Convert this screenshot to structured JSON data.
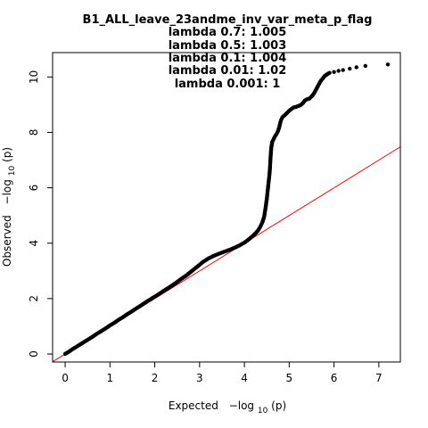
{
  "chart_data": {
    "type": "scatter",
    "title": "B1_ALL_leave_23andme_inv_var_meta_p_flag",
    "subtitles": [
      "lambda 0.7: 1.005",
      "lambda 0.5: 1.003",
      "lambda 0.1: 1.004",
      "lambda 0.01: 1.02",
      "lambda 0.001: 1"
    ],
    "xlabel_text": "Expected",
    "xlabel_math": "−log",
    "xlabel_sub": "10",
    "xlabel_paren": "(p)",
    "ylabel_text": "Observed",
    "ylabel_math": "−log",
    "ylabel_sub": "10",
    "ylabel_paren": "(p)",
    "xlim": [
      -0.28,
      7.48
    ],
    "ylim": [
      -0.29,
      10.88
    ],
    "x_ticks": [
      0,
      1,
      2,
      3,
      4,
      5,
      6,
      7
    ],
    "y_ticks": [
      0,
      2,
      4,
      6,
      8,
      10
    ],
    "x_tick_labels": [
      "0",
      "1",
      "2",
      "3",
      "4",
      "5",
      "6",
      "7"
    ],
    "y_tick_labels": [
      "0",
      "2",
      "4",
      "6",
      "8",
      "10"
    ],
    "reference_line": {
      "slope": 1,
      "intercept": 0,
      "color": "#ff0000"
    },
    "point_color": "#000000",
    "points": [
      [
        0.0,
        0.0
      ],
      [
        0.05,
        0.05
      ],
      [
        0.1,
        0.1
      ],
      [
        0.15,
        0.16
      ],
      [
        0.2,
        0.21
      ],
      [
        0.3,
        0.31
      ],
      [
        0.4,
        0.41
      ],
      [
        0.5,
        0.51
      ],
      [
        0.6,
        0.61
      ],
      [
        0.7,
        0.72
      ],
      [
        0.8,
        0.82
      ],
      [
        0.9,
        0.92
      ],
      [
        1.0,
        1.03
      ],
      [
        1.1,
        1.13
      ],
      [
        1.2,
        1.24
      ],
      [
        1.3,
        1.34
      ],
      [
        1.4,
        1.45
      ],
      [
        1.5,
        1.55
      ],
      [
        1.6,
        1.66
      ],
      [
        1.7,
        1.76
      ],
      [
        1.8,
        1.87
      ],
      [
        1.9,
        1.97
      ],
      [
        2.0,
        2.07
      ],
      [
        2.1,
        2.17
      ],
      [
        2.2,
        2.28
      ],
      [
        2.3,
        2.38
      ],
      [
        2.4,
        2.49
      ],
      [
        2.5,
        2.6
      ],
      [
        2.6,
        2.72
      ],
      [
        2.7,
        2.83
      ],
      [
        2.8,
        2.96
      ],
      [
        2.9,
        3.09
      ],
      [
        3.0,
        3.22
      ],
      [
        3.05,
        3.29
      ],
      [
        3.1,
        3.35
      ],
      [
        3.15,
        3.4
      ],
      [
        3.2,
        3.45
      ],
      [
        3.3,
        3.53
      ],
      [
        3.4,
        3.6
      ],
      [
        3.5,
        3.66
      ],
      [
        3.6,
        3.72
      ],
      [
        3.7,
        3.78
      ],
      [
        3.8,
        3.85
      ],
      [
        3.9,
        3.93
      ],
      [
        4.0,
        4.02
      ],
      [
        4.1,
        4.14
      ],
      [
        4.2,
        4.28
      ],
      [
        4.3,
        4.45
      ],
      [
        4.35,
        4.58
      ],
      [
        4.4,
        4.75
      ],
      [
        4.44,
        4.95
      ],
      [
        4.47,
        5.25
      ],
      [
        4.5,
        5.6
      ],
      [
        4.52,
        5.9
      ],
      [
        4.54,
        6.2
      ],
      [
        4.56,
        6.5
      ],
      [
        4.57,
        6.7
      ],
      [
        4.58,
        7.0
      ],
      [
        4.59,
        7.25
      ],
      [
        4.6,
        7.45
      ],
      [
        4.62,
        7.65
      ],
      [
        4.65,
        7.75
      ],
      [
        4.68,
        7.85
      ],
      [
        4.72,
        7.95
      ],
      [
        4.75,
        8.05
      ],
      [
        4.78,
        8.2
      ],
      [
        4.8,
        8.35
      ],
      [
        4.82,
        8.45
      ],
      [
        4.85,
        8.55
      ],
      [
        4.9,
        8.62
      ],
      [
        4.95,
        8.7
      ],
      [
        5.0,
        8.78
      ],
      [
        5.05,
        8.85
      ],
      [
        5.1,
        8.9
      ],
      [
        5.15,
        8.92
      ],
      [
        5.2,
        8.95
      ],
      [
        5.25,
        8.98
      ],
      [
        5.3,
        9.05
      ],
      [
        5.35,
        9.15
      ],
      [
        5.4,
        9.2
      ],
      [
        5.45,
        9.22
      ],
      [
        5.5,
        9.3
      ],
      [
        5.55,
        9.4
      ],
      [
        5.6,
        9.55
      ],
      [
        5.65,
        9.7
      ],
      [
        5.7,
        9.85
      ],
      [
        5.75,
        9.95
      ],
      [
        5.8,
        10.05
      ],
      [
        5.85,
        10.1
      ],
      [
        5.9,
        10.15
      ],
      [
        6.0,
        10.18
      ],
      [
        6.1,
        10.22
      ],
      [
        6.2,
        10.25
      ],
      [
        6.35,
        10.3
      ],
      [
        6.5,
        10.35
      ],
      [
        6.7,
        10.4
      ],
      [
        7.2,
        10.45
      ]
    ]
  }
}
